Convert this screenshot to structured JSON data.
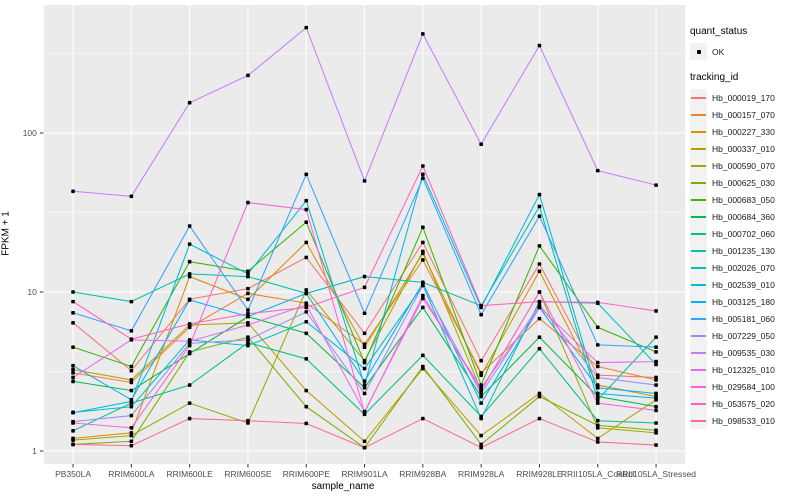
{
  "figure": {
    "panel_bg": "#EBEBEB",
    "grid_color": "#FFFFFF",
    "tick_mark_color": "#333333",
    "tick_label_color": "#4D4D4D",
    "point_color": "#000000",
    "legend_key_bg": "#F2F2F2"
  },
  "axes": {
    "x_title": "sample_name",
    "y_title": "FPKM + 1",
    "y_tick_labels": [
      "1",
      "10",
      "100"
    ]
  },
  "legend": {
    "quant_title": "quant_status",
    "quant_item_label": "OK",
    "tracking_title": "tracking_id"
  },
  "chart_data": {
    "type": "line",
    "xlabel": "sample_name",
    "ylabel": "FPKM + 1",
    "yscale": "log10",
    "ylim": [
      1,
      638
    ],
    "y_major_ticks": [
      1,
      10,
      100
    ],
    "y_minor_ticks": [
      3.1623,
      31.623,
      316.23
    ],
    "grid": true,
    "legend_position": "right",
    "quant_status": "OK",
    "x": [
      "PB350LA",
      "RRIM600LA",
      "RRIM600LE",
      "RRIM600SE",
      "RRIM600PE",
      "RRIM901LA",
      "RRIM928BA",
      "RRIM928LA",
      "RRIM928LE",
      "RRII105LA_Control",
      "RRII105LA_Stressed"
    ],
    "series": [
      {
        "name": "Hb_000019_170",
        "color": "#F8766D",
        "values": [
          6.4,
          3.2,
          9.0,
          10.5,
          16.5,
          5.5,
          20.5,
          3.7,
          15.0,
          3.0,
          2.9
        ]
      },
      {
        "name": "Hb_000157_070",
        "color": "#EA8331",
        "values": [
          3.1,
          2.7,
          6.0,
          9.8,
          8.5,
          4.7,
          15.9,
          3.1,
          6.8,
          3.4,
          2.8
        ]
      },
      {
        "name": "Hb_000227_330",
        "color": "#D89000",
        "values": [
          1.2,
          1.3,
          12.5,
          9.0,
          20.5,
          4.5,
          17.5,
          3.0,
          13.5,
          2.6,
          2.2
        ]
      },
      {
        "name": "Hb_000337_010",
        "color": "#C09B00",
        "values": [
          3.25,
          2.8,
          6.2,
          6.4,
          2.4,
          1.15,
          3.3,
          1.25,
          2.3,
          1.2,
          2.1
        ]
      },
      {
        "name": "Hb_000590_070",
        "color": "#A3A500",
        "values": [
          1.17,
          1.25,
          2.0,
          1.5,
          10.3,
          3.7,
          18.0,
          2.4,
          10.0,
          1.4,
          1.3
        ]
      },
      {
        "name": "Hb_000625_030",
        "color": "#7CAE00",
        "values": [
          1.1,
          1.15,
          4.2,
          5.2,
          1.9,
          1.05,
          3.4,
          1.1,
          2.2,
          1.45,
          1.35
        ]
      },
      {
        "name": "Hb_000683_050",
        "color": "#39B600",
        "values": [
          4.5,
          3.4,
          15.5,
          13.5,
          27.5,
          3.6,
          25.5,
          2.6,
          19.5,
          6.0,
          4.2
        ]
      },
      {
        "name": "Hb_000684_360",
        "color": "#00BB4E",
        "values": [
          2.74,
          2.4,
          4.1,
          7.0,
          5.5,
          2.5,
          8.0,
          2.2,
          5.2,
          2.2,
          1.9
        ]
      },
      {
        "name": "Hb_000702_060",
        "color": "#00C087",
        "values": [
          1.34,
          2.0,
          2.6,
          4.8,
          3.8,
          1.7,
          4.0,
          1.65,
          4.4,
          1.55,
          1.5
        ]
      },
      {
        "name": "Hb_001235_130",
        "color": "#00C1A9",
        "values": [
          10.0,
          8.7,
          13.0,
          12.5,
          9.8,
          12.5,
          11.5,
          8.2,
          34.5,
          2.1,
          5.2
        ]
      },
      {
        "name": "Hb_002026_070",
        "color": "#00BFC4",
        "values": [
          1.75,
          1.9,
          5.0,
          4.6,
          6.5,
          3.3,
          11.0,
          1.6,
          8.7,
          8.5,
          3.5
        ]
      },
      {
        "name": "Hb_002539_010",
        "color": "#00BAE0",
        "values": [
          1.74,
          2.05,
          20.0,
          13.0,
          37.5,
          2.6,
          55.0,
          8.0,
          41.0,
          2.3,
          2.15
        ]
      },
      {
        "name": "Hb_003125_180",
        "color": "#00B0F6",
        "values": [
          3.44,
          2.1,
          8.9,
          7.0,
          9.8,
          2.75,
          11.4,
          2.0,
          8.0,
          2.5,
          2.3
        ]
      },
      {
        "name": "Hb_005181_060",
        "color": "#35A2FF",
        "values": [
          7.4,
          5.7,
          26.0,
          7.7,
          55.0,
          7.35,
          52.0,
          7.2,
          30.0,
          4.65,
          4.5
        ]
      },
      {
        "name": "Hb_007229_050",
        "color": "#9590FF",
        "values": [
          1.53,
          1.67,
          4.75,
          5.0,
          7.5,
          2.3,
          11.0,
          2.3,
          8.3,
          2.9,
          2.6
        ]
      },
      {
        "name": "Hb_009535_030",
        "color": "#C77CFF",
        "values": [
          43,
          40,
          155,
          230,
          460,
          50,
          420,
          85,
          355,
          58,
          47
        ]
      },
      {
        "name": "Hb_012325_010",
        "color": "#E76BF3",
        "values": [
          2.9,
          5.0,
          4.9,
          6.2,
          8.3,
          1.77,
          9.1,
          2.5,
          8.0,
          3.6,
          3.65
        ]
      },
      {
        "name": "Hb_029584_100",
        "color": "#FA62DB",
        "values": [
          1.5,
          1.4,
          4.6,
          36.5,
          33.0,
          1.75,
          9.5,
          2.4,
          10.0,
          2.0,
          1.8
        ]
      },
      {
        "name": "Hb_053575_020",
        "color": "#FF62BC",
        "values": [
          8.7,
          5.05,
          6.3,
          7.3,
          8.0,
          10.7,
          62.0,
          8.2,
          8.7,
          8.6,
          7.6
        ]
      },
      {
        "name": "Hb_098533_010",
        "color": "#FF6A98",
        "values": [
          1.1,
          1.08,
          1.6,
          1.55,
          1.49,
          1.05,
          1.6,
          1.05,
          1.6,
          1.14,
          1.09
        ]
      }
    ]
  }
}
